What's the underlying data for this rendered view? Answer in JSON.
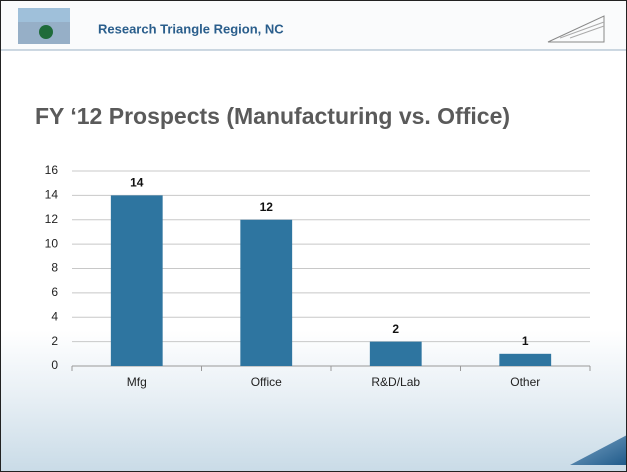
{
  "header": {
    "title": "Research Triangle Region, NC"
  },
  "chart_data": {
    "type": "bar",
    "title": "FY ‘12 Prospects (Manufacturing vs. Office)",
    "categories": [
      "Mfg",
      "Office",
      "R&D/Lab",
      "Other"
    ],
    "values": [
      14,
      12,
      2,
      1
    ],
    "color": "#2e75a0",
    "ylim": [
      0,
      16
    ],
    "yticks": [
      0,
      2,
      4,
      6,
      8,
      10,
      12,
      14,
      16
    ],
    "grid": true
  }
}
